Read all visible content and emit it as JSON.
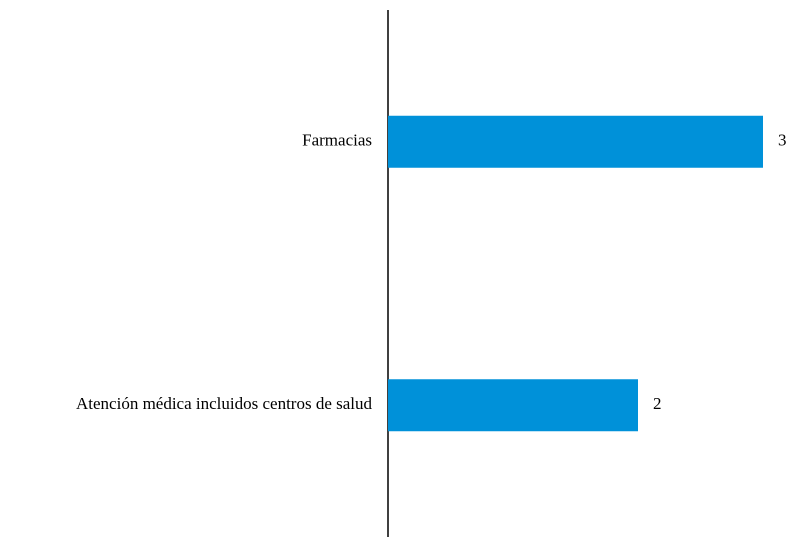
{
  "chart_data": {
    "type": "bar",
    "orientation": "horizontal",
    "categories": [
      "Farmacias",
      "Atención médica incluidos centros de salud"
    ],
    "values": [
      3,
      2
    ],
    "color": "#0091d9"
  }
}
